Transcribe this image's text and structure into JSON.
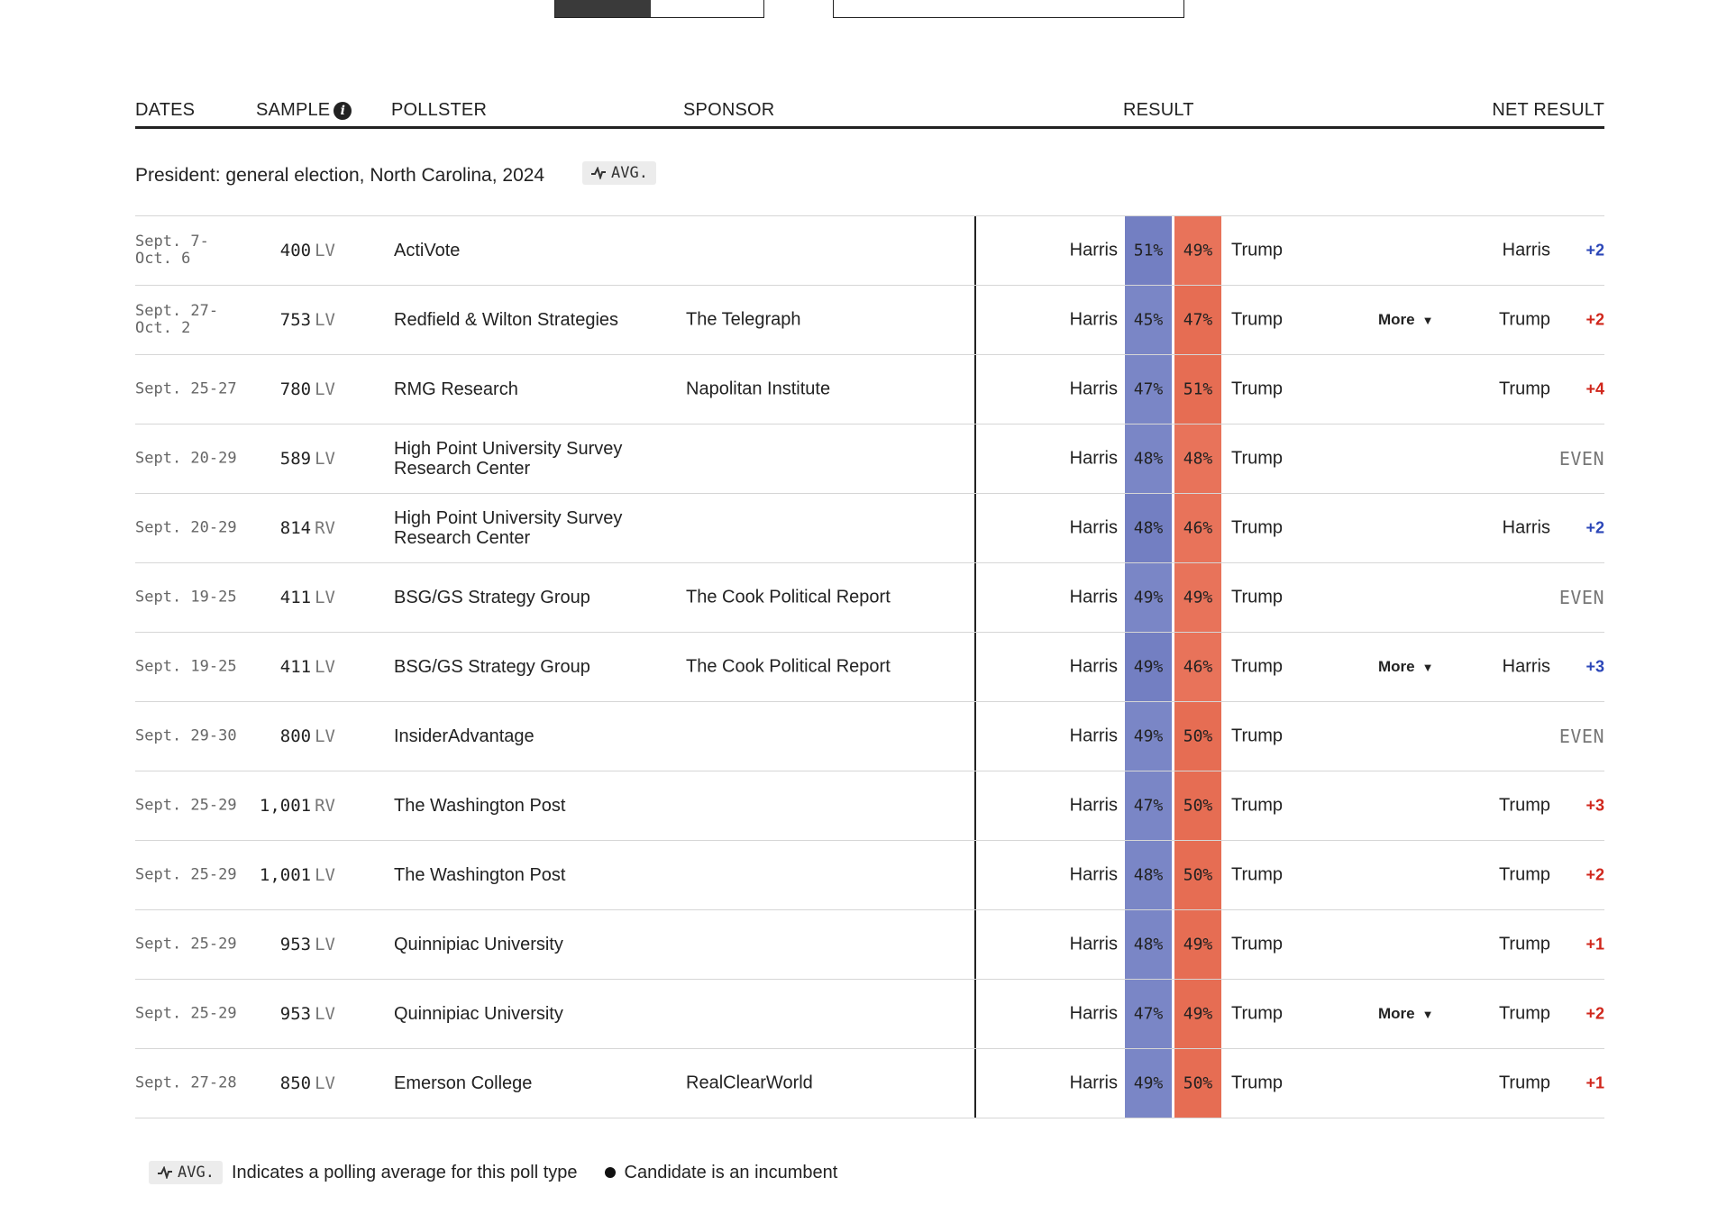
{
  "colors": {
    "dem": "#7a86c6",
    "rep": "#e8735a",
    "dem_text": "#2b46b8",
    "rep_text": "#d0261b"
  },
  "header": {
    "dates": "DATES",
    "sample": "SAMPLE",
    "pollster": "POLLSTER",
    "sponsor": "SPONSOR",
    "result": "RESULT",
    "net_result": "NET RESULT"
  },
  "group": {
    "title": "President: general election, North Carolina, 2024",
    "avg_label": "AVG."
  },
  "polls": [
    {
      "dates": "Sept. 7-\nOct. 6",
      "sample": "400",
      "pop": "LV",
      "pollster": "ActiVote",
      "sponsor": "",
      "dem": "Harris",
      "dem_pct": "51%",
      "dem_val": 51,
      "rep_pct": "49%",
      "rep_val": 49,
      "rep": "Trump",
      "more": "",
      "net_name": "Harris",
      "net_val": "+2",
      "net_party": "dem"
    },
    {
      "dates": "Sept. 27-\nOct. 2",
      "sample": "753",
      "pop": "LV",
      "pollster": "Redfield & Wilton Strategies",
      "sponsor": "The Telegraph",
      "dem": "Harris",
      "dem_pct": "45%",
      "dem_val": 45,
      "rep_pct": "47%",
      "rep_val": 47,
      "rep": "Trump",
      "more": "More",
      "net_name": "Trump",
      "net_val": "+2",
      "net_party": "rep"
    },
    {
      "dates": "Sept. 25-27",
      "sample": "780",
      "pop": "LV",
      "pollster": "RMG Research",
      "sponsor": "Napolitan Institute",
      "dem": "Harris",
      "dem_pct": "47%",
      "dem_val": 47,
      "rep_pct": "51%",
      "rep_val": 51,
      "rep": "Trump",
      "more": "",
      "net_name": "Trump",
      "net_val": "+4",
      "net_party": "rep"
    },
    {
      "dates": "Sept. 20-29",
      "sample": "589",
      "pop": "LV",
      "pollster": "High Point University Survey Research Center",
      "sponsor": "",
      "dem": "Harris",
      "dem_pct": "48%",
      "dem_val": 48,
      "rep_pct": "48%",
      "rep_val": 48,
      "rep": "Trump",
      "more": "",
      "net_name": "",
      "net_val": "EVEN",
      "net_party": "even"
    },
    {
      "dates": "Sept. 20-29",
      "sample": "814",
      "pop": "RV",
      "pollster": "High Point University Survey Research Center",
      "sponsor": "",
      "dem": "Harris",
      "dem_pct": "48%",
      "dem_val": 48,
      "rep_pct": "46%",
      "rep_val": 46,
      "rep": "Trump",
      "more": "",
      "net_name": "Harris",
      "net_val": "+2",
      "net_party": "dem"
    },
    {
      "dates": "Sept. 19-25",
      "sample": "411",
      "pop": "LV",
      "pollster": "BSG/GS Strategy Group",
      "sponsor": "The Cook Political Report",
      "dem": "Harris",
      "dem_pct": "49%",
      "dem_val": 49,
      "rep_pct": "49%",
      "rep_val": 49,
      "rep": "Trump",
      "more": "",
      "net_name": "",
      "net_val": "EVEN",
      "net_party": "even"
    },
    {
      "dates": "Sept. 19-25",
      "sample": "411",
      "pop": "LV",
      "pollster": "BSG/GS Strategy Group",
      "sponsor": "The Cook Political Report",
      "dem": "Harris",
      "dem_pct": "49%",
      "dem_val": 49,
      "rep_pct": "46%",
      "rep_val": 46,
      "rep": "Trump",
      "more": "More",
      "net_name": "Harris",
      "net_val": "+3",
      "net_party": "dem"
    },
    {
      "dates": "Sept. 29-30",
      "sample": "800",
      "pop": "LV",
      "pollster": "InsiderAdvantage",
      "sponsor": "",
      "dem": "Harris",
      "dem_pct": "49%",
      "dem_val": 49,
      "rep_pct": "50%",
      "rep_val": 50,
      "rep": "Trump",
      "more": "",
      "net_name": "",
      "net_val": "EVEN",
      "net_party": "even"
    },
    {
      "dates": "Sept. 25-29",
      "sample": "1,001",
      "pop": "RV",
      "pollster": "The Washington Post",
      "sponsor": "",
      "dem": "Harris",
      "dem_pct": "47%",
      "dem_val": 47,
      "rep_pct": "50%",
      "rep_val": 50,
      "rep": "Trump",
      "more": "",
      "net_name": "Trump",
      "net_val": "+3",
      "net_party": "rep"
    },
    {
      "dates": "Sept. 25-29",
      "sample": "1,001",
      "pop": "LV",
      "pollster": "The Washington Post",
      "sponsor": "",
      "dem": "Harris",
      "dem_pct": "48%",
      "dem_val": 48,
      "rep_pct": "50%",
      "rep_val": 50,
      "rep": "Trump",
      "more": "",
      "net_name": "Trump",
      "net_val": "+2",
      "net_party": "rep"
    },
    {
      "dates": "Sept. 25-29",
      "sample": "953",
      "pop": "LV",
      "pollster": "Quinnipiac University",
      "sponsor": "",
      "dem": "Harris",
      "dem_pct": "48%",
      "dem_val": 48,
      "rep_pct": "49%",
      "rep_val": 49,
      "rep": "Trump",
      "more": "",
      "net_name": "Trump",
      "net_val": "+1",
      "net_party": "rep"
    },
    {
      "dates": "Sept. 25-29",
      "sample": "953",
      "pop": "LV",
      "pollster": "Quinnipiac University",
      "sponsor": "",
      "dem": "Harris",
      "dem_pct": "47%",
      "dem_val": 47,
      "rep_pct": "49%",
      "rep_val": 49,
      "rep": "Trump",
      "more": "More",
      "net_name": "Trump",
      "net_val": "+2",
      "net_party": "rep"
    },
    {
      "dates": "Sept. 27-28",
      "sample": "850",
      "pop": "LV",
      "pollster": "Emerson College",
      "sponsor": "RealClearWorld",
      "dem": "Harris",
      "dem_pct": "49%",
      "dem_val": 49,
      "rep_pct": "50%",
      "rep_val": 50,
      "rep": "Trump",
      "more": "",
      "net_name": "Trump",
      "net_val": "+1",
      "net_party": "rep"
    }
  ],
  "legend": {
    "avg_label": "AVG.",
    "avg_text": "Indicates a polling average for this poll type",
    "incumbent_text": "Candidate is an incumbent"
  }
}
